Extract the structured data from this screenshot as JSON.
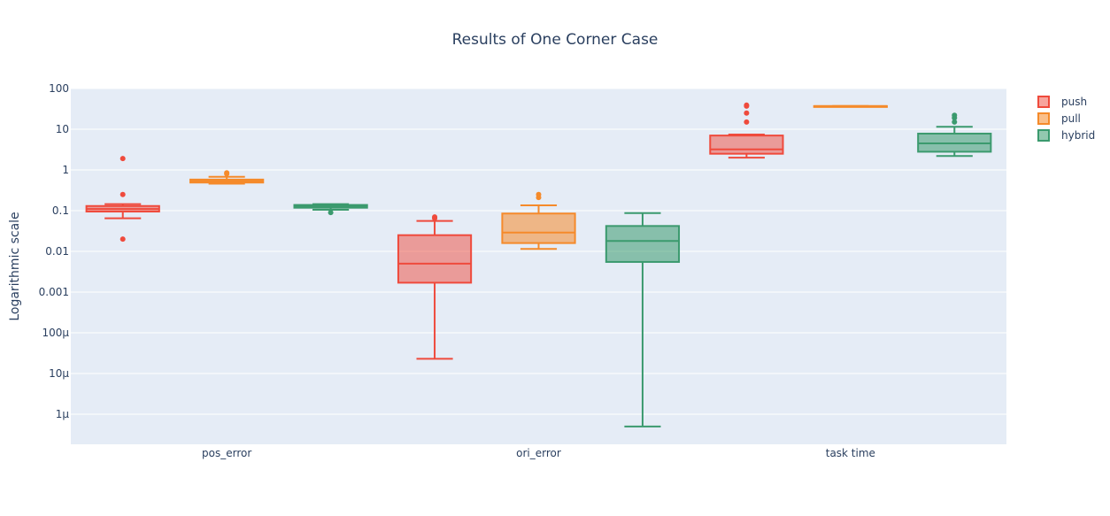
{
  "chart_data": {
    "type": "box",
    "title": "Results of One Corner Case",
    "xlabel": "",
    "ylabel": "Logarithmic scale",
    "y_scale": "log",
    "ylim": [
      1e-07,
      100
    ],
    "grid": true,
    "legend_position": "top-right",
    "categories": [
      "pos_error",
      "ori_error",
      "task time"
    ],
    "y_ticks": [
      {
        "value": 100,
        "label": "100"
      },
      {
        "value": 10,
        "label": "10"
      },
      {
        "value": 1,
        "label": "1"
      },
      {
        "value": 0.1,
        "label": "0.1"
      },
      {
        "value": 0.01,
        "label": "0.01"
      },
      {
        "value": 0.001,
        "label": "0.001"
      },
      {
        "value": 0.0001,
        "label": "100μ"
      },
      {
        "value": 1e-05,
        "label": "10μ"
      },
      {
        "value": 1e-06,
        "label": "1μ"
      }
    ],
    "series": [
      {
        "name": "push",
        "color": "#ef4a3c",
        "fill": "rgba(239,74,60,0.5)",
        "boxes": [
          {
            "category": "pos_error",
            "min": 0.065,
            "q1": 0.095,
            "median": 0.11,
            "q3": 0.13,
            "max": 0.145,
            "outliers": [
              1.9,
              0.25,
              0.02
            ]
          },
          {
            "category": "ori_error",
            "min": 2.3e-05,
            "q1": 0.0017,
            "median": 0.005,
            "q3": 0.025,
            "max": 0.056,
            "outliers": [
              0.07,
              0.065
            ]
          },
          {
            "category": "task time",
            "min": 2.0,
            "q1": 2.5,
            "median": 3.2,
            "q3": 7.0,
            "max": 7.4,
            "outliers": [
              39,
              37,
              25,
              15
            ]
          }
        ]
      },
      {
        "name": "pull",
        "color": "#f58a2a",
        "fill": "rgba(245,138,42,0.55)",
        "boxes": [
          {
            "category": "pos_error",
            "min": 0.46,
            "q1": 0.49,
            "median": 0.53,
            "q3": 0.58,
            "max": 0.68,
            "outliers": [
              0.85,
              0.8
            ]
          },
          {
            "category": "ori_error",
            "min": 0.0115,
            "q1": 0.016,
            "median": 0.029,
            "q3": 0.085,
            "max": 0.135,
            "outliers": [
              0.25,
              0.21
            ]
          },
          {
            "category": "task time",
            "min": 37,
            "q1": 37,
            "median": 37,
            "q3": 37,
            "max": 37,
            "outliers": []
          }
        ]
      },
      {
        "name": "hybrid",
        "color": "#3b9a6e",
        "fill": "rgba(59,154,110,0.55)",
        "boxes": [
          {
            "category": "pos_error",
            "min": 0.105,
            "q1": 0.118,
            "median": 0.128,
            "q3": 0.138,
            "max": 0.145,
            "outliers": [
              0.09
            ]
          },
          {
            "category": "ori_error",
            "min": 5e-07,
            "q1": 0.0055,
            "median": 0.018,
            "q3": 0.042,
            "max": 0.087,
            "outliers": []
          },
          {
            "category": "task time",
            "min": 2.2,
            "q1": 2.8,
            "median": 4.5,
            "q3": 7.8,
            "max": 11.5,
            "outliers": [
              22,
              19,
              15
            ]
          }
        ]
      }
    ]
  }
}
